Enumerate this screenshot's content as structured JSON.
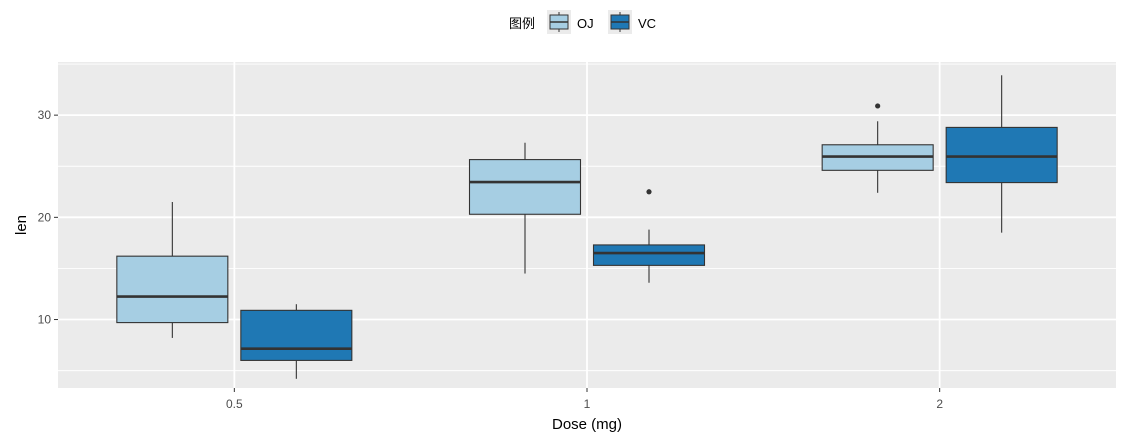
{
  "chart_data": {
    "type": "boxplot",
    "legend": {
      "title": "图例",
      "position": "top",
      "entries": [
        {
          "name": "OJ",
          "color": "#a6cee3"
        },
        {
          "name": "VC",
          "color": "#1f78b4"
        }
      ]
    },
    "xlabel": "Dose (mg)",
    "ylabel": "len",
    "categories": [
      "0.5",
      "1",
      "2"
    ],
    "ylim": [
      3.3,
      35.2
    ],
    "yticks": [
      10,
      20,
      30
    ],
    "grid": true,
    "colors": {
      "panel": "#ebebeb",
      "grid": "#ffffff",
      "outline": "#333333",
      "text": "#4d4d4d"
    },
    "series": [
      {
        "name": "OJ",
        "color": "#a6cee3",
        "boxes": [
          {
            "category": "0.5",
            "min": 8.2,
            "q1": 9.7,
            "median": 12.25,
            "q3": 16.2,
            "max": 21.5,
            "outliers": []
          },
          {
            "category": "1",
            "min": 14.5,
            "q1": 20.3,
            "median": 23.45,
            "q3": 25.65,
            "max": 27.3,
            "outliers": []
          },
          {
            "category": "2",
            "min": 22.4,
            "q1": 24.6,
            "median": 25.95,
            "q3": 27.1,
            "max": 29.4,
            "outliers": [
              30.9
            ]
          }
        ]
      },
      {
        "name": "VC",
        "color": "#1f78b4",
        "boxes": [
          {
            "category": "0.5",
            "min": 4.2,
            "q1": 6.0,
            "median": 7.15,
            "q3": 10.9,
            "max": 11.5,
            "outliers": []
          },
          {
            "category": "1",
            "min": 13.6,
            "q1": 15.3,
            "median": 16.5,
            "q3": 17.3,
            "max": 18.8,
            "outliers": [
              22.5
            ]
          },
          {
            "category": "2",
            "min": 18.5,
            "q1": 23.4,
            "median": 25.95,
            "q3": 28.8,
            "max": 33.9,
            "outliers": []
          }
        ]
      }
    ]
  }
}
